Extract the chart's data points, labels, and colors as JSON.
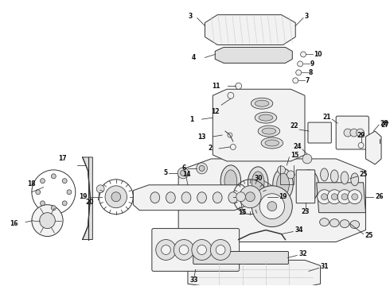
{
  "bg_color": "#ffffff",
  "fig_width": 4.9,
  "fig_height": 3.6,
  "dpi": 100,
  "ec": "#333333",
  "lw": 0.7,
  "label_fs": 5.5
}
